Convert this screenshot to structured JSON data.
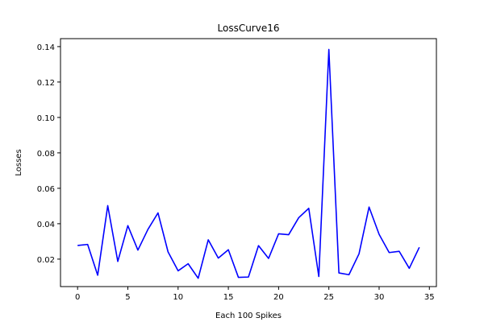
{
  "chart_data": {
    "type": "line",
    "title": "LossCurve16",
    "xlabel": "Each 100 Spikes",
    "ylabel": "Losses",
    "xlim": [
      -1.7,
      35.7
    ],
    "ylim": [
      0.0045,
      0.1445
    ],
    "xticks": [
      0,
      5,
      10,
      15,
      20,
      25,
      30,
      35
    ],
    "yticks": [
      0.02,
      0.04,
      0.06,
      0.08,
      0.1,
      0.12,
      0.14
    ],
    "ytick_labels": [
      "0.02",
      "0.04",
      "0.06",
      "0.08",
      "0.10",
      "0.12",
      "0.14"
    ],
    "grid": false,
    "series": [
      {
        "color": "#0000ff",
        "x": [
          0,
          1,
          2,
          3,
          4,
          5,
          6,
          7,
          8,
          9,
          10,
          11,
          12,
          13,
          14,
          15,
          16,
          17,
          18,
          19,
          20,
          21,
          22,
          23,
          24,
          25,
          26,
          27,
          28,
          29,
          30,
          31,
          32,
          33,
          34
        ],
        "values": [
          0.0277,
          0.0283,
          0.0109,
          0.0502,
          0.0187,
          0.0389,
          0.0251,
          0.0368,
          0.0461,
          0.0241,
          0.0134,
          0.0174,
          0.0092,
          0.0309,
          0.0206,
          0.0253,
          0.0097,
          0.0099,
          0.0276,
          0.0204,
          0.0343,
          0.0338,
          0.0434,
          0.0487,
          0.0102,
          0.1384,
          0.0122,
          0.0112,
          0.023,
          0.0494,
          0.034,
          0.0237,
          0.0244,
          0.0148,
          0.0267
        ]
      }
    ]
  }
}
